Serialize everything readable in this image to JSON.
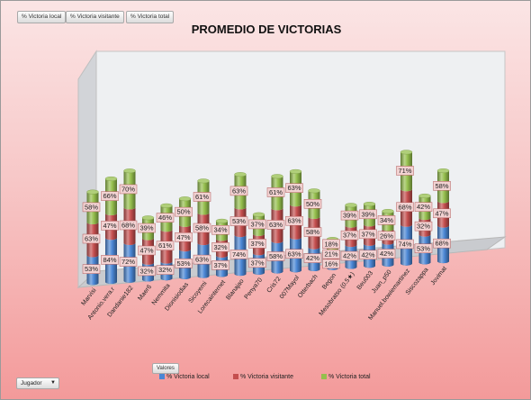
{
  "filter_buttons": [
    {
      "label": "% Victoria local"
    },
    {
      "label": "% Victoria visitante"
    },
    {
      "label": "% Victoria total"
    }
  ],
  "values_field_label": "Valores",
  "axis_field": {
    "label": "Jugador",
    "icon": "dropdown-arrow-icon"
  },
  "colors": {
    "local": "#4a86d4",
    "visitante": "#c44e4e",
    "total": "#95bf4d",
    "label_bg": "#f2d2d2",
    "label_border": "#b25a5a"
  },
  "chart_data": {
    "type": "bar",
    "stacked": true,
    "three_d": true,
    "title": "PROMEDIO DE VICTORIAS",
    "categories": [
      "Marvisi",
      "Antonio.vera.r",
      "Dandanie182",
      "Maer6",
      "Nemmita",
      "Dionisiodias",
      "Sicoyemi",
      "Lorecainternet",
      "Blanajao",
      "Penya70",
      "Cris72",
      "007Mayol",
      "Otterbach",
      "Begon",
      "Mesobratso (0.5★)",
      "Beu003",
      "Juan_p50",
      "Manuel.bowiemartinez",
      "Siscozappa",
      "Jovimat"
    ],
    "series": [
      {
        "name": "% Victoria local",
        "values": [
          53,
          84,
          72,
          32,
          32,
          53,
          63,
          37,
          74,
          37,
          58,
          63,
          42,
          16,
          42,
          42,
          42,
          74,
          53,
          68
        ]
      },
      {
        "name": "% Victoria visitante",
        "values": [
          63,
          47,
          68,
          47,
          61,
          47,
          58,
          32,
          53,
          37,
          63,
          63,
          58,
          21,
          37,
          37,
          26,
          68,
          32,
          47
        ]
      },
      {
        "name": "% Victoria total",
        "values": [
          58,
          66,
          70,
          39,
          46,
          50,
          61,
          34,
          63,
          37,
          61,
          63,
          50,
          18,
          39,
          39,
          34,
          71,
          42,
          58
        ]
      }
    ],
    "data_labels": true,
    "legend": {
      "position": "bottom"
    }
  }
}
